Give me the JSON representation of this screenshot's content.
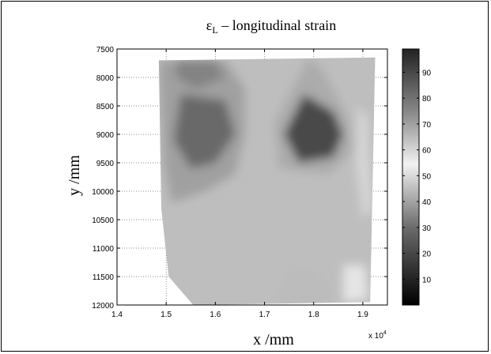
{
  "chart_data": {
    "type": "heatmap",
    "title": "εL – longitudinal strain",
    "title_main": "ε",
    "title_sub": "L",
    "title_rest": " – longitudinal strain",
    "xlabel": "x /mm",
    "ylabel": "y /mm",
    "x_multiplier_label": "x 10",
    "x_multiplier_exp": "4",
    "xlim": [
      1.4,
      1.95
    ],
    "ylim": [
      7500,
      12000
    ],
    "y_reversed": true,
    "x_ticks": [
      1.4,
      1.5,
      1.6,
      1.7,
      1.8,
      1.9
    ],
    "x_tick_labels": [
      "1.4",
      "1.5",
      "1.6",
      "1.7",
      "1.8",
      "1.9"
    ],
    "y_ticks": [
      7500,
      8000,
      8500,
      9000,
      9500,
      10000,
      10500,
      11000,
      11500,
      12000
    ],
    "y_tick_labels": [
      "7500",
      "8000",
      "8500",
      "9000",
      "9500",
      "10000",
      "10500",
      "11000",
      "11500",
      "12000"
    ],
    "grid": true,
    "colorbar": {
      "min": 0,
      "max": 99,
      "ticks": [
        10,
        20,
        30,
        40,
        50,
        60,
        70,
        80,
        90
      ],
      "tick_labels": [
        "10",
        "20",
        "30",
        "40",
        "50",
        "60",
        "70",
        "80",
        "90"
      ],
      "colormap": "gray"
    },
    "domain_outline": [
      [
        1.485,
        7700
      ],
      [
        1.925,
        7650
      ],
      [
        1.915,
        11950
      ],
      [
        1.555,
        12000
      ],
      [
        1.505,
        11500
      ],
      [
        1.49,
        10300
      ]
    ],
    "regions": [
      {
        "name": "upper-left-dark",
        "value": 70,
        "polygon": [
          [
            1.485,
            7700
          ],
          [
            1.62,
            7700
          ],
          [
            1.66,
            8200
          ],
          [
            1.66,
            9000
          ],
          [
            1.64,
            9700
          ],
          [
            1.58,
            10000
          ],
          [
            1.51,
            10200
          ],
          [
            1.495,
            9500
          ]
        ]
      },
      {
        "name": "upper-left-core",
        "value": 82,
        "polygon": [
          [
            1.53,
            8300
          ],
          [
            1.62,
            8400
          ],
          [
            1.64,
            9000
          ],
          [
            1.6,
            9500
          ],
          [
            1.55,
            9600
          ],
          [
            1.515,
            9100
          ]
        ]
      },
      {
        "name": "upper-left-top",
        "value": 76,
        "polygon": [
          [
            1.52,
            7700
          ],
          [
            1.6,
            7700
          ],
          [
            1.62,
            8000
          ],
          [
            1.56,
            8200
          ],
          [
            1.52,
            8000
          ]
        ]
      },
      {
        "name": "center-right-dark",
        "value": 68,
        "polygon": [
          [
            1.79,
            7650
          ],
          [
            1.82,
            7900
          ],
          [
            1.87,
            8700
          ],
          [
            1.88,
            9300
          ],
          [
            1.83,
            9700
          ],
          [
            1.73,
            9600
          ],
          [
            1.72,
            8800
          ]
        ]
      },
      {
        "name": "center-right-core",
        "value": 90,
        "polygon": [
          [
            1.78,
            8300
          ],
          [
            1.84,
            8600
          ],
          [
            1.86,
            9000
          ],
          [
            1.84,
            9400
          ],
          [
            1.77,
            9500
          ],
          [
            1.74,
            9000
          ]
        ]
      },
      {
        "name": "right-edge-strip",
        "value": 60,
        "polygon": [
          [
            1.89,
            8500
          ],
          [
            1.91,
            8700
          ],
          [
            1.92,
            10300
          ],
          [
            1.9,
            10500
          ],
          [
            1.885,
            9500
          ]
        ]
      },
      {
        "name": "bottom-dark",
        "value": 65,
        "polygon": [
          [
            1.72,
            11800
          ],
          [
            1.76,
            11400
          ],
          [
            1.8,
            11400
          ],
          [
            1.84,
            11800
          ],
          [
            1.82,
            12000
          ],
          [
            1.74,
            12000
          ]
        ]
      },
      {
        "name": "bottom-right-mid",
        "value": 52,
        "polygon": [
          [
            1.86,
            11300
          ],
          [
            1.905,
            11300
          ],
          [
            1.91,
            11900
          ],
          [
            1.86,
            11950
          ]
        ]
      }
    ],
    "background_value": 45
  }
}
